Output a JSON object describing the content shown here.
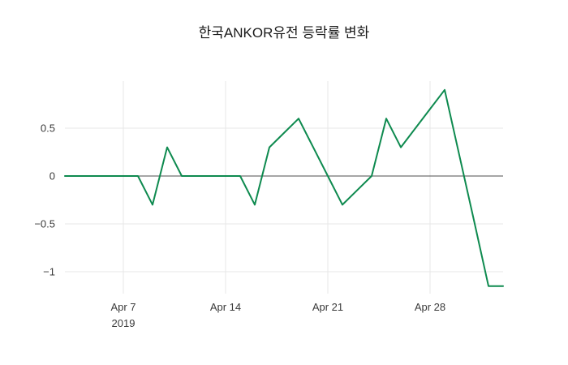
{
  "chart_data": {
    "type": "line",
    "title": "한국ANKOR유전 등락률 변화",
    "xlabel": "",
    "ylabel": "",
    "x": [
      "Apr 3",
      "Apr 4",
      "Apr 5",
      "Apr 6",
      "Apr 7",
      "Apr 8",
      "Apr 9",
      "Apr 10",
      "Apr 11",
      "Apr 12",
      "Apr 13",
      "Apr 14",
      "Apr 15",
      "Apr 16",
      "Apr 17",
      "Apr 18",
      "Apr 19",
      "Apr 20",
      "Apr 21",
      "Apr 22",
      "Apr 23",
      "Apr 24",
      "Apr 25",
      "Apr 26",
      "Apr 27",
      "Apr 28",
      "Apr 29",
      "Apr 30",
      "May 1",
      "May 2",
      "May 3"
    ],
    "values": [
      0,
      0,
      0,
      0,
      0,
      0,
      -0.3,
      0.3,
      0,
      0,
      0,
      0,
      0,
      -0.3,
      0.3,
      0.45,
      0.6,
      0.3,
      0,
      -0.3,
      -0.15,
      0,
      0.6,
      0.3,
      0.5,
      0.7,
      0.9,
      0.22,
      -0.46,
      -1.15,
      -1.15
    ],
    "line_color": "#0e8a4f",
    "grid_color": "#e7e7e7",
    "zero_line_color": "#4d4d4d",
    "grid": true,
    "legend": "none",
    "ylim": [
      -1.3,
      1.05
    ],
    "yticks": [
      0.5,
      0,
      -0.5,
      -1
    ],
    "ytick_labels": [
      "0.5",
      "0",
      "−0.5",
      "−1"
    ],
    "xticks": [
      {
        "label": "Apr 7",
        "sublabel": "2019"
      },
      {
        "label": "Apr 14",
        "sublabel": ""
      },
      {
        "label": "Apr 21",
        "sublabel": ""
      },
      {
        "label": "Apr 28",
        "sublabel": ""
      }
    ]
  }
}
